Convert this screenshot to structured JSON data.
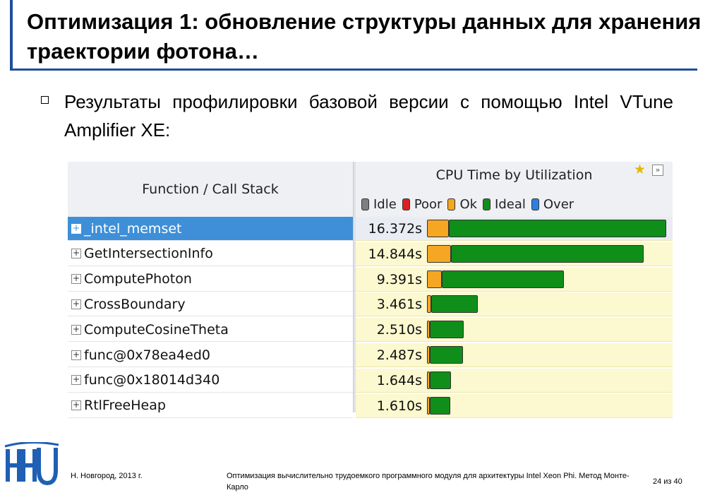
{
  "slide": {
    "title": "Оптимизация 1: обновление структуры данных для хранения траектории фотона…",
    "bullet": "Результаты профилировки базовой версии с помощью Intel VTune Amplifier XE:"
  },
  "vtune": {
    "column_function": "Function / Call Stack",
    "column_cpu": "CPU Time by Utilization",
    "legend": [
      {
        "label": "Idle",
        "color": "#7f7f7f"
      },
      {
        "label": "Poor",
        "color": "#e02020"
      },
      {
        "label": "Ok",
        "color": "#f5a623"
      },
      {
        "label": "Ideal",
        "color": "#0f8f1a"
      },
      {
        "label": "Over",
        "color": "#2f7fe0"
      }
    ],
    "rows": [
      {
        "name": "_intel_memset",
        "time": "16.372s",
        "time_value": 16.372,
        "ok_fraction": 0.09,
        "selected": true
      },
      {
        "name": "GetIntersectionInfo",
        "time": "14.844s",
        "time_value": 14.844,
        "ok_fraction": 0.11,
        "selected": false
      },
      {
        "name": "ComputePhoton",
        "time": "9.391s",
        "time_value": 9.391,
        "ok_fraction": 0.11,
        "selected": false
      },
      {
        "name": "CrossBoundary",
        "time": "3.461s",
        "time_value": 3.461,
        "ok_fraction": 0.08,
        "selected": false
      },
      {
        "name": "ComputeCosineTheta",
        "time": "2.510s",
        "time_value": 2.51,
        "ok_fraction": 0.04,
        "selected": false
      },
      {
        "name": "func@0x78ea4ed0",
        "time": "2.487s",
        "time_value": 2.487,
        "ok_fraction": 0.04,
        "selected": false
      },
      {
        "name": "func@0x18014d340",
        "time": "1.644s",
        "time_value": 1.644,
        "ok_fraction": 0.05,
        "selected": false
      },
      {
        "name": "RtlFreeHeap",
        "time": "1.610s",
        "time_value": 1.61,
        "ok_fraction": 0.05,
        "selected": false
      }
    ]
  },
  "footer": {
    "left": "Н. Новгород, 2013 г.",
    "middle": "Оптимизация вычислительно трудоемкого программного модуля для архитектуры Intel Xeon Phi. Метод Монте-Карло",
    "page": "24 из 40"
  },
  "colors": {
    "accent": "#1f4e9b",
    "selected_row": "#3e8fd8",
    "cell_bg": "#fcf8cf"
  }
}
